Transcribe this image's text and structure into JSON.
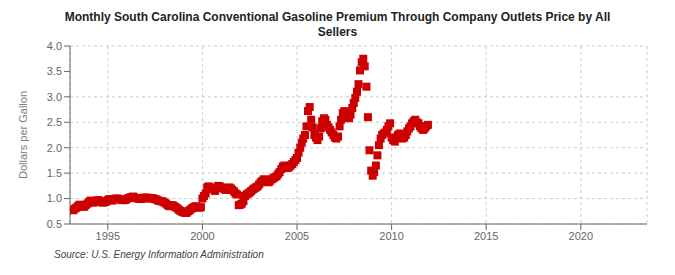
{
  "chart_data": {
    "type": "scatter",
    "title": "Monthly South Carolina Conventional Gasoline Premium Through Company Outlets Price by All\nSellers",
    "ylabel": "Dollars per Gallon",
    "annotations": [
      "Source: U.S. Energy Information Administration"
    ],
    "color": "#cc0000",
    "marker": "square",
    "grid": true,
    "xlim": [
      1993.0,
      2023.5
    ],
    "xticks": [
      1995,
      2000,
      2005,
      2010,
      2015,
      2020
    ],
    "ylim": [
      0.5,
      4.0
    ],
    "yticks": [
      0.5,
      {
        "value": 1.0,
        "label": "1.0"
      },
      1.5,
      {
        "value": 2.0,
        "label": "2.0"
      },
      2.5,
      {
        "value": 3.0,
        "label": "3.0"
      },
      3.5,
      {
        "value": 4.0,
        "label": "4.0"
      }
    ],
    "x": [
      1993.17,
      1993.25,
      1993.33,
      1993.42,
      1993.5,
      1993.58,
      1993.67,
      1993.75,
      1993.83,
      1993.92,
      1994.0,
      1994.08,
      1994.17,
      1994.25,
      1994.33,
      1994.42,
      1994.5,
      1994.58,
      1994.67,
      1994.75,
      1994.83,
      1994.92,
      1995.0,
      1995.08,
      1995.17,
      1995.25,
      1995.33,
      1995.42,
      1995.5,
      1995.58,
      1995.67,
      1995.75,
      1995.83,
      1995.92,
      1996.0,
      1996.08,
      1996.17,
      1996.25,
      1996.33,
      1996.42,
      1996.5,
      1996.58,
      1996.67,
      1996.75,
      1996.83,
      1996.92,
      1997.0,
      1997.08,
      1997.17,
      1997.25,
      1997.33,
      1997.42,
      1997.5,
      1997.58,
      1997.67,
      1997.75,
      1997.83,
      1997.92,
      1998.0,
      1998.08,
      1998.17,
      1998.25,
      1998.33,
      1998.42,
      1998.5,
      1998.58,
      1998.67,
      1998.75,
      1998.83,
      1998.92,
      1999.0,
      1999.08,
      1999.17,
      1999.25,
      1999.33,
      1999.42,
      1999.5,
      1999.58,
      1999.67,
      1999.75,
      1999.83,
      1999.92,
      2000.0,
      2000.08,
      2000.17,
      2000.25,
      2000.33,
      2000.42,
      2000.5,
      2000.58,
      2000.67,
      2000.75,
      2000.83,
      2000.92,
      2001.0,
      2001.08,
      2001.17,
      2001.25,
      2001.33,
      2001.42,
      2001.5,
      2001.58,
      2001.67,
      2001.75,
      2001.83,
      2001.92,
      2002.0,
      2002.08,
      2002.17,
      2002.25,
      2002.33,
      2002.42,
      2002.5,
      2002.58,
      2002.67,
      2002.75,
      2002.83,
      2002.92,
      2003.0,
      2003.08,
      2003.17,
      2003.25,
      2003.33,
      2003.42,
      2003.5,
      2003.58,
      2003.67,
      2003.75,
      2003.83,
      2003.92,
      2004.0,
      2004.08,
      2004.17,
      2004.25,
      2004.33,
      2004.42,
      2004.5,
      2004.58,
      2004.67,
      2004.75,
      2004.83,
      2004.92,
      2005.0,
      2005.08,
      2005.17,
      2005.25,
      2005.33,
      2005.42,
      2005.5,
      2005.58,
      2005.67,
      2005.75,
      2005.83,
      2005.92,
      2006.0,
      2006.08,
      2006.17,
      2006.25,
      2006.33,
      2006.42,
      2006.5,
      2006.58,
      2006.67,
      2006.75,
      2006.83,
      2006.92,
      2007.0,
      2007.08,
      2007.17,
      2007.25,
      2007.33,
      2007.42,
      2007.5,
      2007.58,
      2007.67,
      2007.75,
      2007.83,
      2007.92,
      2008.0,
      2008.08,
      2008.17,
      2008.25,
      2008.33,
      2008.42,
      2008.5,
      2008.58,
      2008.67,
      2008.75,
      2008.83,
      2008.92,
      2009.0,
      2009.08,
      2009.17,
      2009.25,
      2009.33,
      2009.42,
      2009.5,
      2009.58,
      2009.67,
      2009.75,
      2009.83,
      2009.92,
      2010.0,
      2010.08,
      2010.17,
      2010.25,
      2010.33,
      2010.42,
      2010.5,
      2010.58,
      2010.67,
      2010.75,
      2010.83,
      2010.92,
      2011.0,
      2011.08,
      2011.17,
      2011.25,
      2011.33,
      2011.42,
      2011.5,
      2011.58,
      2011.67,
      2011.75,
      2011.83,
      2011.92
    ],
    "values": [
      0.77,
      0.8,
      0.82,
      0.85,
      0.88,
      0.86,
      0.84,
      0.84,
      0.87,
      0.9,
      0.93,
      0.96,
      0.93,
      0.92,
      0.95,
      0.96,
      0.97,
      0.95,
      0.93,
      0.92,
      0.93,
      0.94,
      0.97,
      0.99,
      0.98,
      0.96,
      0.99,
      1.0,
      1.0,
      0.99,
      0.98,
      0.97,
      0.97,
      0.97,
      0.99,
      1.01,
      1.02,
      1.03,
      1.04,
      1.02,
      1.01,
      1.0,
      1.0,
      0.99,
      1.0,
      1.02,
      1.01,
      1.02,
      1.01,
      1.0,
      1.01,
      1.0,
      0.99,
      0.98,
      0.96,
      0.95,
      0.95,
      0.94,
      0.92,
      0.9,
      0.87,
      0.85,
      0.87,
      0.87,
      0.85,
      0.83,
      0.81,
      0.78,
      0.76,
      0.74,
      0.73,
      0.72,
      0.72,
      0.75,
      0.77,
      0.8,
      0.82,
      0.84,
      0.85,
      0.83,
      0.82,
      0.83,
      1.0,
      1.05,
      1.1,
      1.22,
      1.24,
      1.22,
      1.2,
      1.18,
      1.15,
      1.21,
      1.25,
      1.24,
      1.22,
      1.2,
      1.18,
      1.17,
      1.19,
      1.22,
      1.2,
      1.17,
      1.14,
      1.1,
      1.08,
      0.87,
      0.88,
      0.9,
      0.95,
      1.05,
      1.08,
      1.1,
      1.12,
      1.15,
      1.18,
      1.2,
      1.22,
      1.24,
      1.28,
      1.32,
      1.35,
      1.38,
      1.36,
      1.34,
      1.32,
      1.35,
      1.38,
      1.4,
      1.42,
      1.44,
      1.48,
      1.52,
      1.58,
      1.63,
      1.65,
      1.62,
      1.6,
      1.62,
      1.65,
      1.68,
      1.72,
      1.76,
      1.8,
      1.9,
      2.0,
      2.1,
      2.18,
      2.25,
      2.42,
      2.72,
      2.8,
      2.55,
      2.4,
      2.25,
      2.2,
      2.15,
      2.22,
      2.38,
      2.52,
      2.58,
      2.55,
      2.45,
      2.4,
      2.35,
      2.3,
      2.25,
      2.2,
      2.18,
      2.22,
      2.42,
      2.55,
      2.68,
      2.72,
      2.7,
      2.62,
      2.58,
      2.65,
      2.78,
      2.88,
      2.98,
      3.1,
      3.25,
      3.52,
      3.68,
      3.75,
      3.6,
      3.2,
      2.6,
      1.95,
      1.55,
      1.45,
      1.52,
      1.65,
      1.85,
      2.05,
      2.18,
      2.25,
      2.28,
      2.3,
      2.35,
      2.42,
      2.48,
      2.2,
      2.15,
      2.12,
      2.2,
      2.25,
      2.28,
      2.22,
      2.18,
      2.2,
      2.25,
      2.32,
      2.38,
      2.42,
      2.48,
      2.52,
      2.55,
      2.5,
      2.48,
      2.42,
      2.38,
      2.35,
      2.38,
      2.42,
      2.45
    ]
  }
}
